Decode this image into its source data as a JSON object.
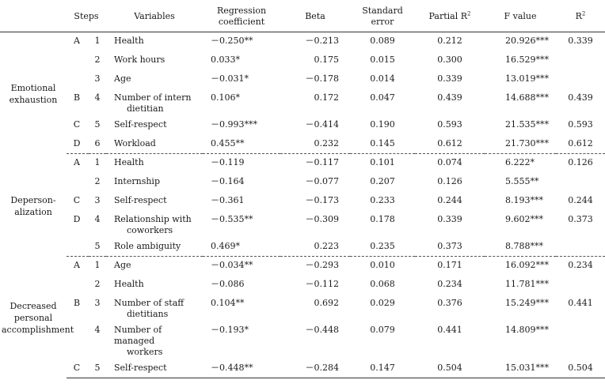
{
  "headers": {
    "steps": "Steps",
    "variables": "Variables",
    "regression": "Regression coefficient",
    "beta": "Beta",
    "standard_error": "Standard error",
    "partial_r2": "Partial R",
    "f_value": "F value",
    "r2": "R"
  },
  "groups": [
    {
      "name": "Emotional exhaustion",
      "rows": [
        {
          "step": "A",
          "num": "1",
          "variable": "Health",
          "coef": "－0.250**",
          "beta": "－0.213",
          "se": "0.089",
          "partial_r2": "0.212",
          "f": "20.926***",
          "r2": "0.339"
        },
        {
          "step": "",
          "num": "2",
          "variable": "Work hours",
          "coef": "0.033*",
          "beta": "0.175",
          "se": "0.015",
          "partial_r2": "0.300",
          "f": "16.529***",
          "r2": ""
        },
        {
          "step": "",
          "num": "3",
          "variable": "Age",
          "coef": "－0.031*",
          "beta": "－0.178",
          "se": "0.014",
          "partial_r2": "0.339",
          "f": "13.019***",
          "r2": ""
        },
        {
          "step": "B",
          "num": "4",
          "variable": "Number of intern",
          "variable2": "dietitian",
          "coef": "0.106*",
          "beta": "0.172",
          "se": "0.047",
          "partial_r2": "0.439",
          "f": "14.688***",
          "r2": "0.439"
        },
        {
          "step": "C",
          "num": "5",
          "variable": "Self-respect",
          "coef": "－0.993***",
          "beta": "－0.414",
          "se": "0.190",
          "partial_r2": "0.593",
          "f": "21.535***",
          "r2": "0.593"
        },
        {
          "step": "D",
          "num": "6",
          "variable": "Workload",
          "coef": "0.455**",
          "beta": "0.232",
          "se": "0.145",
          "partial_r2": "0.612",
          "f": "21.730***",
          "r2": "0.612"
        }
      ]
    },
    {
      "name": "Deperson-alization",
      "rows": [
        {
          "step": "A",
          "num": "1",
          "variable": "Health",
          "coef": "－0.119",
          "beta": "－0.117",
          "se": "0.101",
          "partial_r2": "0.074",
          "f": "6.222*",
          "r2": "0.126"
        },
        {
          "step": "",
          "num": "2",
          "variable": "Internship",
          "coef": "－0.164",
          "beta": "－0.077",
          "se": "0.207",
          "partial_r2": "0.126",
          "f": "5.555**",
          "r2": ""
        },
        {
          "step": "C",
          "num": "3",
          "variable": "Self-respect",
          "coef": "－0.361",
          "beta": "－0.173",
          "se": "0.233",
          "partial_r2": "0.244",
          "f": "8.193***",
          "r2": "0.244"
        },
        {
          "step": "D",
          "num": "4",
          "variable": "Relationship with",
          "variable2": "coworkers",
          "coef": "－0.535**",
          "beta": "－0.309",
          "se": "0.178",
          "partial_r2": "0.339",
          "f": "9.602***",
          "r2": "0.373"
        },
        {
          "step": "",
          "num": "5",
          "variable": "Role ambiguity",
          "coef": "0.469*",
          "beta": "0.223",
          "se": "0.235",
          "partial_r2": "0.373",
          "f": "8.788***",
          "r2": ""
        }
      ]
    },
    {
      "name": "Decreased personal accomplishment",
      "rows": [
        {
          "step": "A",
          "num": "1",
          "variable": "Age",
          "coef": "－0.034**",
          "beta": "－0.293",
          "se": "0.010",
          "partial_r2": "0.171",
          "f": "16.092***",
          "r2": "0.234"
        },
        {
          "step": "",
          "num": "2",
          "variable": "Health",
          "coef": "－0.086",
          "beta": "－0.112",
          "se": "0.068",
          "partial_r2": "0.234",
          "f": "11.781***",
          "r2": ""
        },
        {
          "step": "B",
          "num": "3",
          "variable": "Number of staff",
          "variable2": "dietitians",
          "coef": "0.104**",
          "beta": "0.692",
          "se": "0.029",
          "partial_r2": "0.376",
          "f": "15.249***",
          "r2": "0.441"
        },
        {
          "step": "",
          "num": "4",
          "variable": "Number of managed",
          "variable2": "workers",
          "coef": "－0.193*",
          "beta": "－0.448",
          "se": "0.079",
          "partial_r2": "0.441",
          "f": "14.809***",
          "r2": ""
        },
        {
          "step": "C",
          "num": "5",
          "variable": "Self-respect",
          "coef": "－0.448**",
          "beta": "－0.284",
          "se": "0.147",
          "partial_r2": "0.504",
          "f": "15.031***",
          "r2": "0.504"
        }
      ]
    }
  ]
}
